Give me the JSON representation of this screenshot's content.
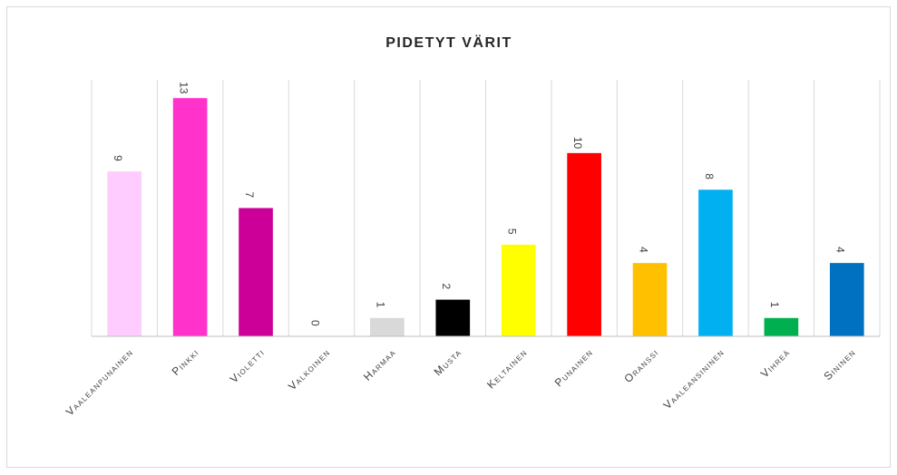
{
  "chart_data": {
    "type": "bar",
    "title": "PIDETYT VÄRIT",
    "categories": [
      "Vaaleanpunainen",
      "Pinkki",
      "Violetti",
      "Valkoinen",
      "Harmaa",
      "Musta",
      "Keltainen",
      "Punainen",
      "Oranssi",
      "Vaaleansininen",
      "Vihreä",
      "Sininen"
    ],
    "values": [
      9,
      13,
      7,
      0,
      1,
      2,
      5,
      10,
      4,
      8,
      1,
      4
    ],
    "colors": [
      "#ffccff",
      "#ff33cc",
      "#cc0099",
      "#ffffff",
      "#d9d9d9",
      "#000000",
      "#ffff00",
      "#ff0000",
      "#ffc000",
      "#00b0f0",
      "#00b050",
      "#0070c0"
    ],
    "ylim": [
      0,
      14
    ]
  }
}
